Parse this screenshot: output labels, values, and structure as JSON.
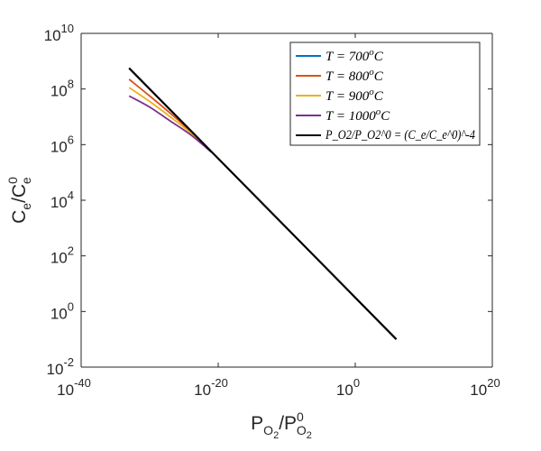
{
  "chart_data": {
    "type": "line",
    "scale": "log-log",
    "title": "",
    "xlabel": {
      "main": "P",
      "sub": "O",
      "subsub": "2",
      "sep": "/P",
      "sup": "0"
    },
    "ylabel": {
      "main": "C",
      "sub": "e",
      "sep": "/C",
      "sup": "0"
    },
    "xlim_exponents": [
      -40,
      20
    ],
    "ylim_exponents": [
      -2,
      10
    ],
    "xticks": [
      {
        "base": "10",
        "exp": "-40",
        "value": -40
      },
      {
        "base": "10",
        "exp": "-20",
        "value": -20
      },
      {
        "base": "10",
        "exp": "0",
        "value": 0
      },
      {
        "base": "10",
        "exp": "20",
        "value": 20
      }
    ],
    "yticks": [
      {
        "base": "10",
        "exp": "-2",
        "value": -2
      },
      {
        "base": "10",
        "exp": "0",
        "value": 0
      },
      {
        "base": "10",
        "exp": "2",
        "value": 2
      },
      {
        "base": "10",
        "exp": "4",
        "value": 4
      },
      {
        "base": "10",
        "exp": "6",
        "value": 6
      },
      {
        "base": "10",
        "exp": "8",
        "value": 8
      },
      {
        "base": "10",
        "exp": "10",
        "value": 10
      }
    ],
    "grid": false,
    "legend_position": "top-right",
    "series": [
      {
        "name": "T = 700°C",
        "label": {
          "pre": "T = 700",
          "sup": "o",
          "post": "C"
        },
        "color": "#0072BD",
        "points": [
          [
            -33,
            8.75
          ],
          [
            -30,
            8.0
          ],
          [
            -27,
            7.25
          ],
          [
            -24,
            6.5
          ],
          [
            -21,
            5.75
          ]
        ]
      },
      {
        "name": "T = 800°C",
        "label": {
          "pre": "T = 800",
          "sup": "o",
          "post": "C"
        },
        "color": "#D95319",
        "points": [
          [
            -33,
            8.35
          ],
          [
            -30,
            7.75
          ],
          [
            -27,
            7.13
          ],
          [
            -24,
            6.47
          ],
          [
            -21,
            5.75
          ]
        ]
      },
      {
        "name": "T = 900°C",
        "label": {
          "pre": "T = 900",
          "sup": "o",
          "post": "C"
        },
        "color": "#EDB120",
        "points": [
          [
            -33,
            8.05
          ],
          [
            -30,
            7.55
          ],
          [
            -27,
            7.0
          ],
          [
            -24,
            6.42
          ],
          [
            -21,
            5.74
          ]
        ]
      },
      {
        "name": "T = 1000°C",
        "label": {
          "pre": "T = 1000",
          "sup": "o",
          "post": "C"
        },
        "color": "#7E2F8E",
        "points": [
          [
            -33,
            7.75
          ],
          [
            -30,
            7.35
          ],
          [
            -27,
            6.85
          ],
          [
            -24,
            6.35
          ],
          [
            -21,
            5.73
          ]
        ]
      },
      {
        "name": "P_O2/P_O2^0 = (C_e/C_e^0)^-4",
        "label": {
          "formula": "P_O2/P_O2^0 = (C_e/C_e^0)^-4"
        },
        "color": "#000000",
        "points": [
          [
            -33,
            8.75
          ],
          [
            -20,
            5.5
          ],
          [
            0,
            0.5
          ],
          [
            6,
            -1.0
          ]
        ]
      }
    ]
  }
}
